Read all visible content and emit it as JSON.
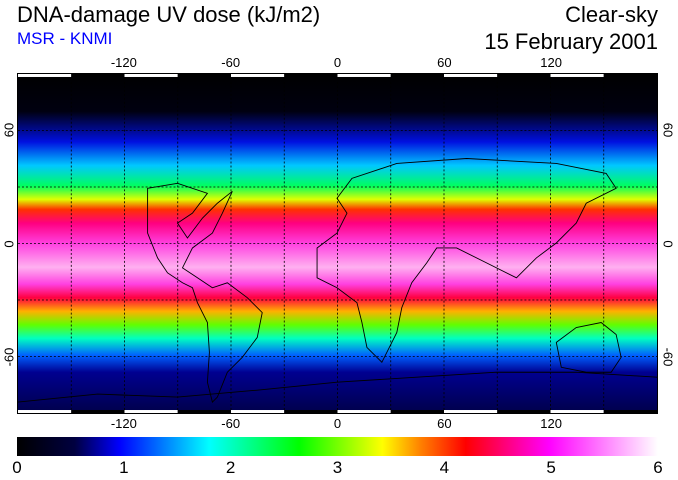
{
  "header": {
    "title": "DNA-damage UV dose (kJ/m2)",
    "subtitle": "MSR - KNMI",
    "condition": "Clear-sky",
    "date": "15 February 2001"
  },
  "map": {
    "lon_range": [
      -180,
      180
    ],
    "lat_range": [
      -90,
      90
    ],
    "lon_ticks": [
      "-120",
      "-60",
      "0",
      "60",
      "120"
    ],
    "lon_tick_values": [
      -120,
      -60,
      0,
      60,
      120
    ],
    "lat_ticks": [
      "60",
      "0",
      "-60"
    ],
    "lat_tick_values": [
      60,
      0,
      -60
    ]
  },
  "colorbar": {
    "min": 0,
    "max": 6,
    "labels": [
      "0",
      "1",
      "2",
      "3",
      "4",
      "5",
      "6"
    ],
    "colors": [
      "#000000",
      "#0000ff",
      "#00ffff",
      "#00ff00",
      "#ffff00",
      "#ff0000",
      "#ff00ff",
      "#ffffff"
    ]
  }
}
